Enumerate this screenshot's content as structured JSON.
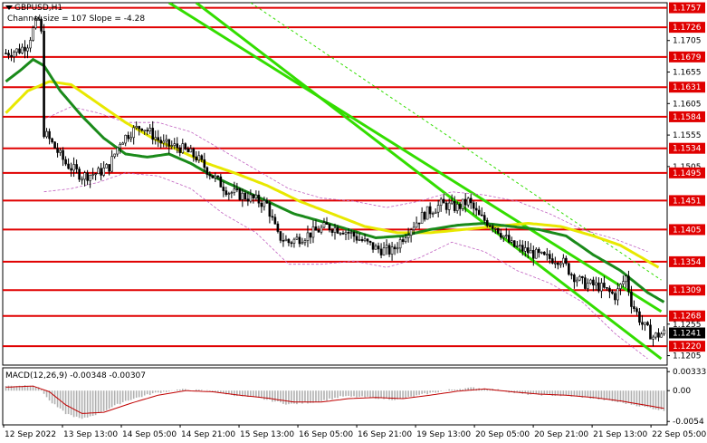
{
  "header": {
    "symbol": "GBPUSD,H1",
    "channel_info": "Channel size = 107 Slope = -4.28",
    "macd_label": "MACD(12,26,9) -0.00348 -0.00307"
  },
  "colors": {
    "background": "#ffffff",
    "levels": "#e00000",
    "candles": "#000000",
    "ma_fast": "#1a8a1a",
    "ma_slow": "#e8e800",
    "channel": "#33dd00",
    "macd_hist": "#b0b0b0",
    "macd_signal": "#c00000",
    "price_tag": "#000000"
  },
  "chart_data": {
    "type": "candlestick",
    "title": "GBPUSD,H1",
    "price_ticks": [
      "1.1705",
      "1.1655",
      "1.1605",
      "1.1555",
      "1.1505",
      "1.1255",
      "1.1205"
    ],
    "levels": [
      "1.1757",
      "1.1726",
      "1.1679",
      "1.1631",
      "1.1584",
      "1.1534",
      "1.1495",
      "1.1451",
      "1.1405",
      "1.1354",
      "1.1309",
      "1.1268",
      "1.1220"
    ],
    "current_price": "1.1241",
    "ylim": [
      1.119,
      1.1765
    ],
    "x_labels": [
      "12 Sep 2022",
      "13 Sep 13:00",
      "14 Sep 05:00",
      "14 Sep 21:00",
      "15 Sep 13:00",
      "16 Sep 05:00",
      "16 Sep 21:00",
      "19 Sep 13:00",
      "20 Sep 05:00",
      "20 Sep 21:00",
      "21 Sep 13:00",
      "22 Sep 05:00"
    ],
    "price_anchors": [
      [
        0,
        1.1685
      ],
      [
        5,
        1.169
      ],
      [
        8,
        1.17
      ],
      [
        10,
        1.1722
      ],
      [
        12,
        1.1738
      ],
      [
        13,
        1.1715
      ],
      [
        14,
        1.156
      ],
      [
        18,
        1.1535
      ],
      [
        22,
        1.151
      ],
      [
        28,
        1.149
      ],
      [
        34,
        1.1495
      ],
      [
        38,
        1.1505
      ],
      [
        42,
        1.1545
      ],
      [
        46,
        1.156
      ],
      [
        50,
        1.157
      ],
      [
        54,
        1.1555
      ],
      [
        58,
        1.154
      ],
      [
        64,
        1.1535
      ],
      [
        70,
        1.152
      ],
      [
        76,
        1.149
      ],
      [
        82,
        1.1465
      ],
      [
        90,
        1.1455
      ],
      [
        96,
        1.1445
      ],
      [
        100,
        1.1395
      ],
      [
        104,
        1.1385
      ],
      [
        110,
        1.1395
      ],
      [
        118,
        1.141
      ],
      [
        124,
        1.1405
      ],
      [
        130,
        1.139
      ],
      [
        136,
        1.1375
      ],
      [
        142,
        1.137
      ],
      [
        148,
        1.1405
      ],
      [
        154,
        1.143
      ],
      [
        160,
        1.1445
      ],
      [
        166,
        1.144
      ],
      [
        170,
        1.145
      ],
      [
        174,
        1.1425
      ],
      [
        180,
        1.141
      ],
      [
        186,
        1.138
      ],
      [
        192,
        1.137
      ],
      [
        198,
        1.136
      ],
      [
        204,
        1.1358
      ],
      [
        208,
        1.1335
      ],
      [
        212,
        1.132
      ],
      [
        218,
        1.1315
      ],
      [
        224,
        1.13
      ],
      [
        228,
        1.133
      ],
      [
        230,
        1.129
      ],
      [
        234,
        1.1255
      ],
      [
        238,
        1.1235
      ],
      [
        242,
        1.1241
      ]
    ],
    "ma_fast_anchors": [
      [
        0,
        1.164
      ],
      [
        6,
        1.166
      ],
      [
        10,
        1.1675
      ],
      [
        14,
        1.1665
      ],
      [
        20,
        1.1625
      ],
      [
        28,
        1.1585
      ],
      [
        36,
        1.155
      ],
      [
        44,
        1.1525
      ],
      [
        52,
        1.152
      ],
      [
        60,
        1.1525
      ],
      [
        68,
        1.151
      ],
      [
        76,
        1.149
      ],
      [
        86,
        1.147
      ],
      [
        96,
        1.145
      ],
      [
        106,
        1.143
      ],
      [
        116,
        1.1418
      ],
      [
        126,
        1.1405
      ],
      [
        136,
        1.1392
      ],
      [
        146,
        1.1395
      ],
      [
        156,
        1.1405
      ],
      [
        166,
        1.1412
      ],
      [
        176,
        1.1415
      ],
      [
        186,
        1.141
      ],
      [
        196,
        1.1405
      ],
      [
        206,
        1.1395
      ],
      [
        216,
        1.1365
      ],
      [
        226,
        1.134
      ],
      [
        236,
        1.1305
      ],
      [
        242,
        1.129
      ]
    ],
    "ma_slow_anchors": [
      [
        0,
        1.159
      ],
      [
        8,
        1.1625
      ],
      [
        16,
        1.164
      ],
      [
        24,
        1.1635
      ],
      [
        34,
        1.1605
      ],
      [
        44,
        1.1575
      ],
      [
        54,
        1.155
      ],
      [
        64,
        1.153
      ],
      [
        74,
        1.151
      ],
      [
        84,
        1.1495
      ],
      [
        96,
        1.1475
      ],
      [
        108,
        1.145
      ],
      [
        120,
        1.143
      ],
      [
        132,
        1.141
      ],
      [
        144,
        1.14
      ],
      [
        156,
        1.14
      ],
      [
        168,
        1.1405
      ],
      [
        180,
        1.141
      ],
      [
        192,
        1.1415
      ],
      [
        204,
        1.141
      ],
      [
        216,
        1.1395
      ],
      [
        226,
        1.138
      ],
      [
        236,
        1.1355
      ],
      [
        240,
        1.1345
      ]
    ],
    "bollinger_anchors": [
      [
        14,
        1.158,
        1.1465
      ],
      [
        24,
        1.16,
        1.147
      ],
      [
        34,
        1.159,
        1.148
      ],
      [
        44,
        1.1575,
        1.1495
      ],
      [
        56,
        1.1575,
        1.149
      ],
      [
        68,
        1.156,
        1.147
      ],
      [
        80,
        1.153,
        1.143
      ],
      [
        92,
        1.15,
        1.14
      ],
      [
        104,
        1.147,
        1.135
      ],
      [
        116,
        1.1455,
        1.135
      ],
      [
        128,
        1.145,
        1.1355
      ],
      [
        140,
        1.144,
        1.1345
      ],
      [
        152,
        1.145,
        1.136
      ],
      [
        164,
        1.1465,
        1.1385
      ],
      [
        176,
        1.146,
        1.137
      ],
      [
        188,
        1.145,
        1.134
      ],
      [
        200,
        1.143,
        1.132
      ],
      [
        212,
        1.1405,
        1.129
      ],
      [
        224,
        1.139,
        1.124
      ],
      [
        236,
        1.137,
        1.12
      ]
    ],
    "channel_lines": [
      [
        [
          60,
          1.1765
        ],
        [
          241,
          1.1275
        ]
      ],
      [
        [
          90,
          1.1765
        ],
        [
          241,
          1.1325
        ]
      ],
      [
        [
          70,
          1.1765
        ],
        [
          241,
          1.12
        ]
      ]
    ],
    "macd_ticks": [
      "0.00333",
      "0.00",
      "-0.0054"
    ],
    "macd_ylim": [
      -0.006,
      0.004
    ],
    "macd_hist_anchors": [
      [
        0,
        0.0008
      ],
      [
        10,
        0.001
      ],
      [
        13,
        0.0002
      ],
      [
        16,
        -0.0018
      ],
      [
        22,
        -0.004
      ],
      [
        28,
        -0.005
      ],
      [
        34,
        -0.004
      ],
      [
        44,
        -0.0018
      ],
      [
        54,
        -0.0005
      ],
      [
        64,
        0.0002
      ],
      [
        74,
        0.0
      ],
      [
        84,
        -0.0008
      ],
      [
        94,
        -0.0014
      ],
      [
        104,
        -0.0024
      ],
      [
        114,
        -0.002
      ],
      [
        124,
        -0.001
      ],
      [
        134,
        -0.0012
      ],
      [
        144,
        -0.0016
      ],
      [
        154,
        -0.0006
      ],
      [
        164,
        0.0002
      ],
      [
        172,
        0.0005
      ],
      [
        180,
        0.0002
      ],
      [
        190,
        -0.0006
      ],
      [
        200,
        -0.0008
      ],
      [
        210,
        -0.001
      ],
      [
        220,
        -0.0016
      ],
      [
        230,
        -0.0024
      ],
      [
        242,
        -0.0035
      ]
    ],
    "macd_signal_anchors": [
      [
        0,
        0.0006
      ],
      [
        10,
        0.0008
      ],
      [
        16,
        -0.0002
      ],
      [
        22,
        -0.0025
      ],
      [
        28,
        -0.004
      ],
      [
        36,
        -0.0038
      ],
      [
        46,
        -0.0022
      ],
      [
        56,
        -0.0008
      ],
      [
        66,
        0.0
      ],
      [
        76,
        -0.0002
      ],
      [
        86,
        -0.0008
      ],
      [
        96,
        -0.0013
      ],
      [
        106,
        -0.002
      ],
      [
        116,
        -0.002
      ],
      [
        126,
        -0.0014
      ],
      [
        136,
        -0.0012
      ],
      [
        146,
        -0.0014
      ],
      [
        156,
        -0.0008
      ],
      [
        166,
        -0.0001
      ],
      [
        176,
        0.0003
      ],
      [
        186,
        -0.0002
      ],
      [
        196,
        -0.0006
      ],
      [
        206,
        -0.0008
      ],
      [
        216,
        -0.0012
      ],
      [
        226,
        -0.0018
      ],
      [
        236,
        -0.0026
      ],
      [
        242,
        -0.0031
      ]
    ]
  }
}
